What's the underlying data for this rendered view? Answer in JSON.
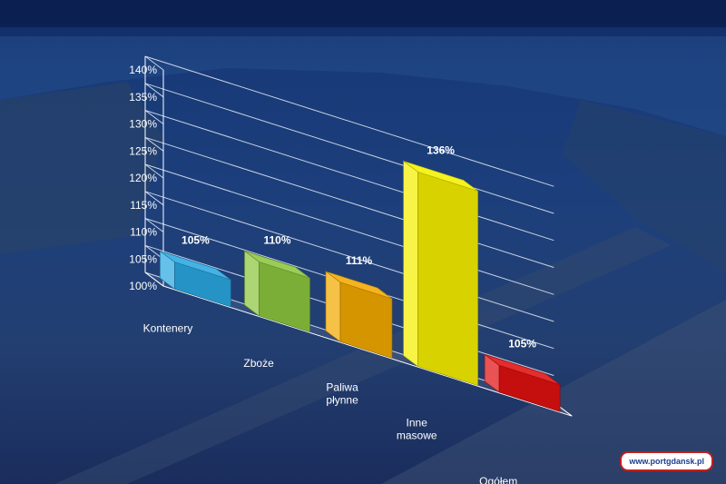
{
  "chart_data": {
    "type": "bar",
    "categories": [
      [
        "Kontenery"
      ],
      [
        "Zboże"
      ],
      [
        "Paliwa",
        "płynne"
      ],
      [
        "Inne",
        "masowe"
      ],
      [
        "Ogółem"
      ]
    ],
    "values": [
      105,
      110,
      111,
      136,
      105
    ],
    "data_labels": [
      "105%",
      "110%",
      "111%",
      "136%",
      "105%"
    ],
    "bar_colors": [
      "#2aa7e0",
      "#8cc63e",
      "#f2a900",
      "#f5f000",
      "#e01010"
    ],
    "ylim": [
      100,
      140
    ],
    "yticks": [
      100,
      105,
      110,
      115,
      120,
      125,
      130,
      135,
      140
    ],
    "ytick_labels": [
      "100%",
      "105%",
      "110%",
      "115%",
      "120%",
      "125%",
      "130%",
      "135%",
      "140%"
    ],
    "grid": true,
    "style": "3d-bar"
  },
  "watermark": {
    "text": "www.portgdansk.pl"
  }
}
